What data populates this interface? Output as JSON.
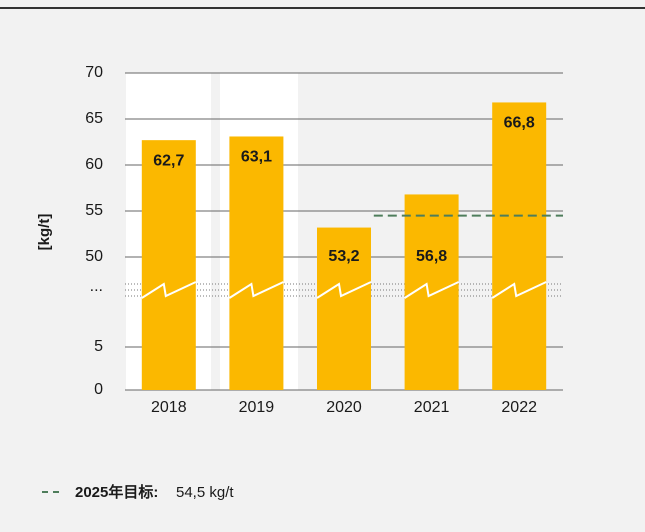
{
  "chart_data": {
    "type": "bar",
    "y_label": "[kg/t]",
    "categories": [
      "2018",
      "2019",
      "2020",
      "2021",
      "2022"
    ],
    "values": [
      62.7,
      63.1,
      53.2,
      56.8,
      66.8
    ],
    "value_labels": [
      "62,7",
      "63,1",
      "53,2",
      "56,8",
      "66,8"
    ],
    "color": "#fbb800",
    "ylim": [
      0,
      70
    ],
    "ybreak": [
      5,
      50
    ],
    "ybreak_label": "...",
    "yticks": [
      0,
      5,
      50,
      55,
      60,
      65,
      70
    ],
    "grid": true,
    "target": {
      "label": "2025年目标:",
      "value": 54.5,
      "value_label": "54,5 kg/t",
      "color": "#4e7d5b",
      "from_category": 3
    }
  }
}
